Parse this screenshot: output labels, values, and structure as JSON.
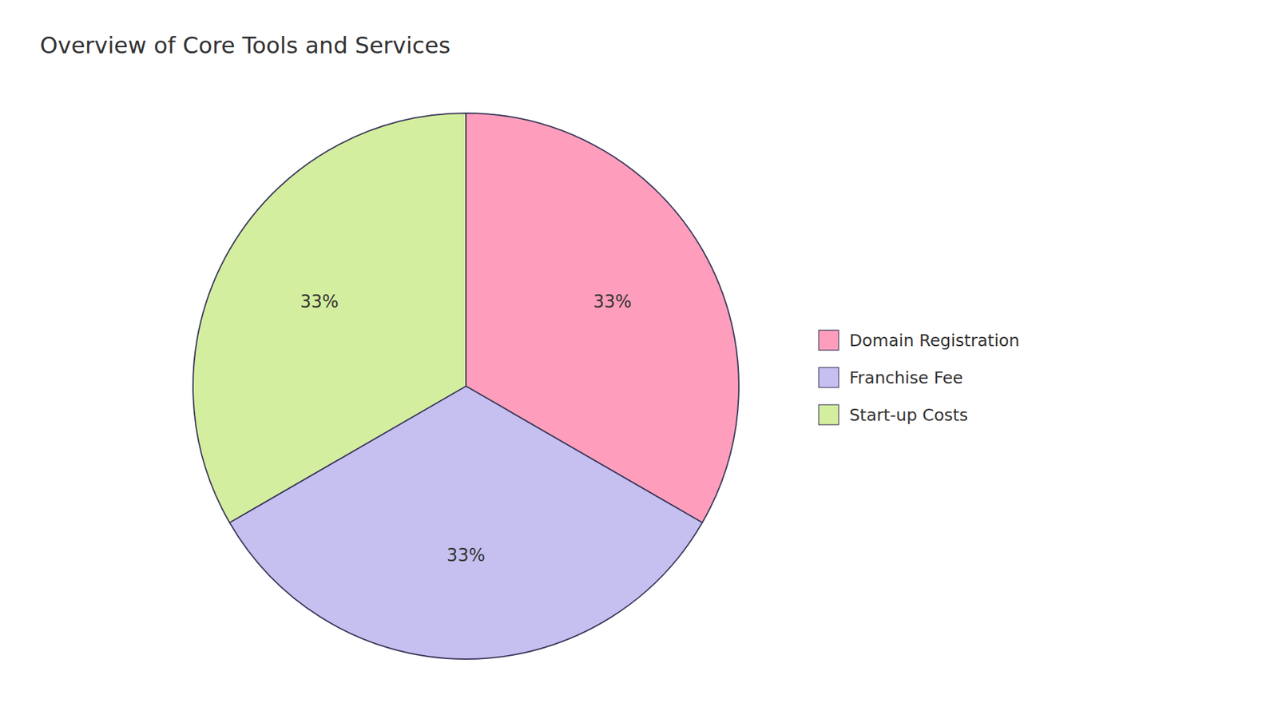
{
  "chart_data": {
    "type": "pie",
    "title": "Overview of Core Tools and Services",
    "categories": [
      "Domain Registration",
      "Franchise Fee",
      "Start-up Costs"
    ],
    "values": [
      33,
      33,
      33
    ],
    "value_labels": [
      "33%",
      "33%",
      "33%"
    ],
    "colors": [
      "#FF9EBC",
      "#C5C0F0",
      "#D4EE9F"
    ],
    "data_labels": true,
    "legend": "right"
  }
}
